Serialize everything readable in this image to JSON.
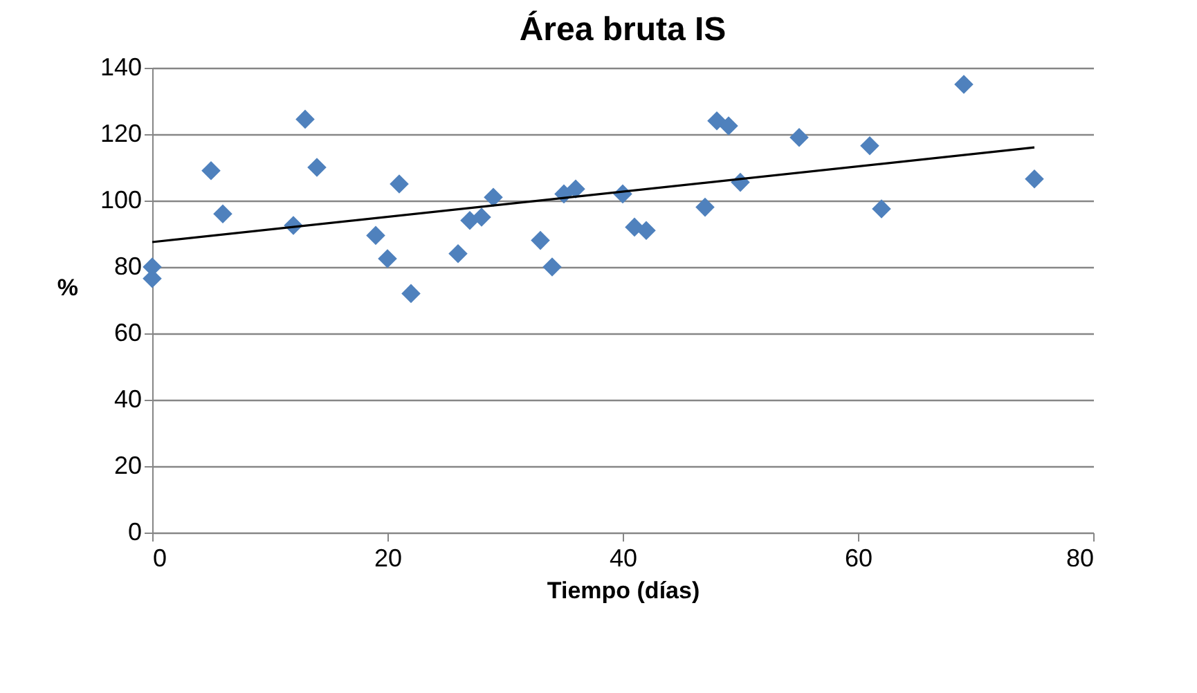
{
  "chart_data": {
    "type": "scatter",
    "title": "Área bruta IS",
    "xlabel": "Tiempo (días)",
    "ylabel": "%",
    "xlim": [
      0,
      80
    ],
    "xticks": [
      0,
      20,
      40,
      60,
      80
    ],
    "ylim": [
      0,
      140
    ],
    "yticks": [
      0,
      20,
      40,
      60,
      80,
      100,
      120,
      140
    ],
    "grid": "y",
    "series": [
      {
        "color": "#4f81bd",
        "marker": "diamond",
        "x": [
          0,
          0,
          5,
          6,
          12,
          13,
          14,
          19,
          20,
          21,
          22,
          26,
          27,
          28,
          29,
          33,
          34,
          35,
          36,
          40,
          41,
          42,
          47,
          48,
          49,
          50,
          55,
          61,
          62,
          69,
          75
        ],
        "values": [
          80,
          76.5,
          109,
          96,
          92.5,
          124.5,
          110,
          89.5,
          82.5,
          105,
          72,
          84,
          94,
          95,
          101,
          88,
          80,
          102,
          103.5,
          102,
          92,
          91,
          98,
          124,
          122.5,
          105.5,
          119,
          116.5,
          97.5,
          135,
          106.5
        ]
      },
      {
        "type": "line",
        "color": "#000000",
        "x": [
          0,
          75
        ],
        "values": [
          87.5,
          116
        ]
      }
    ]
  }
}
